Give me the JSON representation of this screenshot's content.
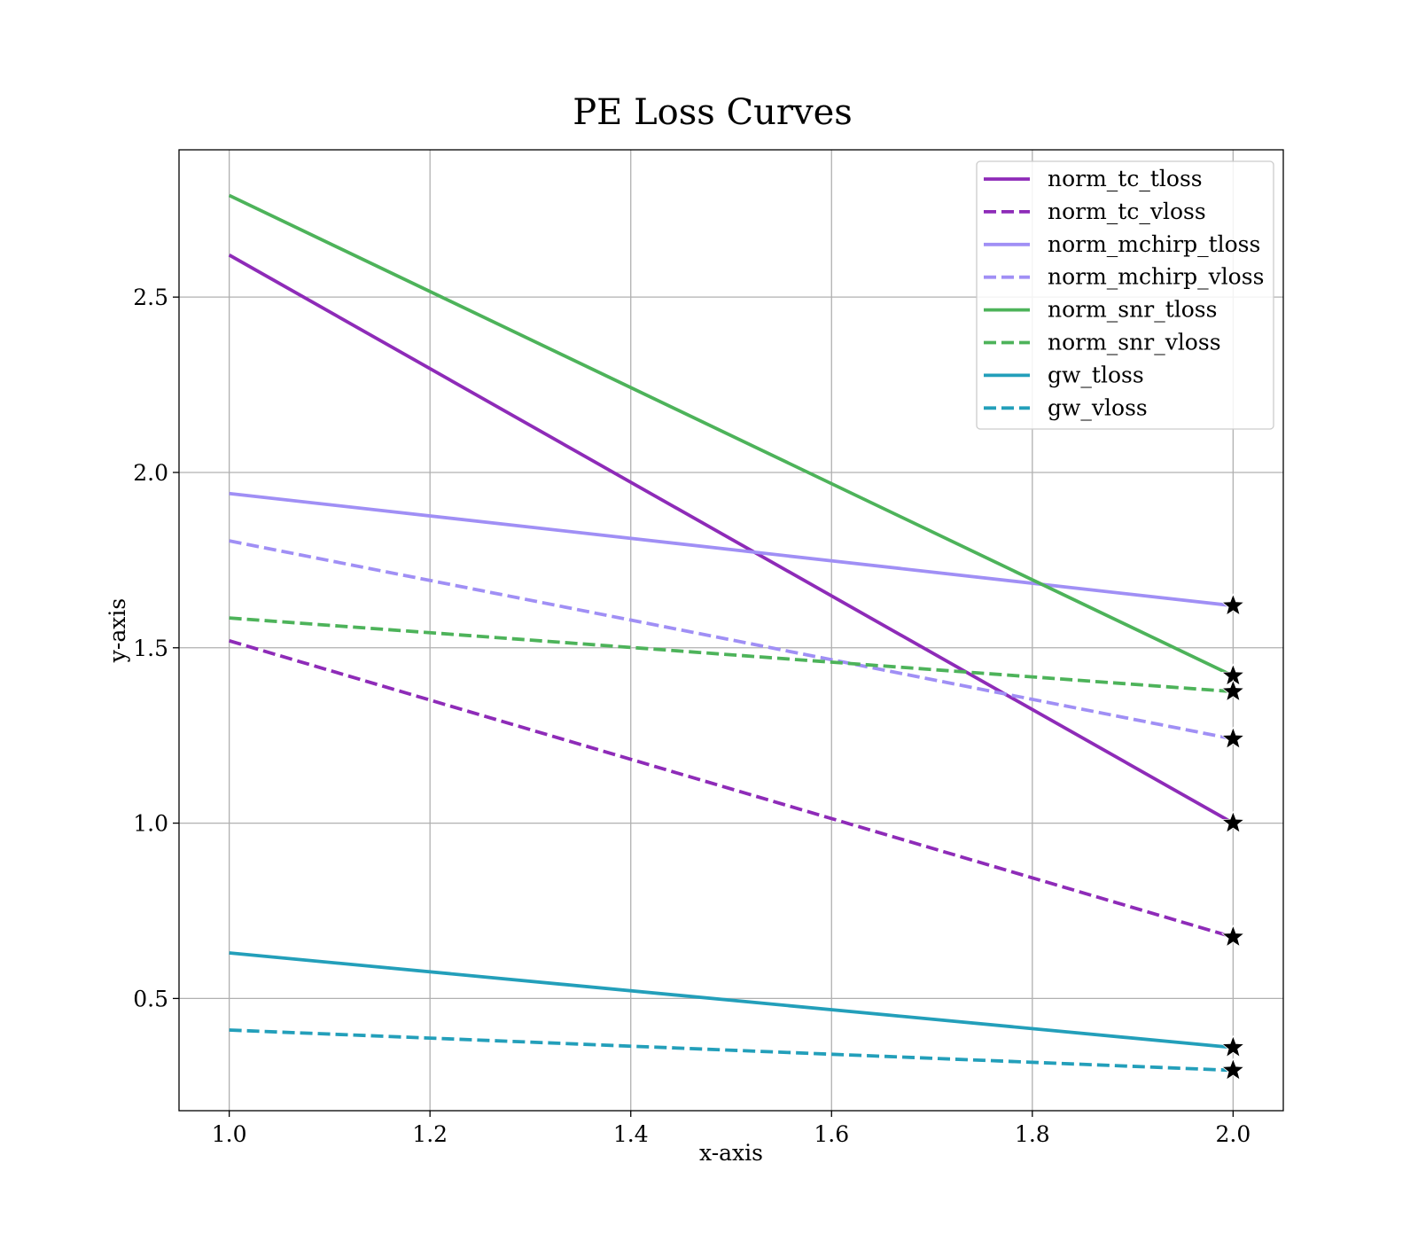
{
  "chart_data": {
    "type": "line",
    "title": "PE Loss Curves",
    "xlabel": "x-axis",
    "ylabel": "y-axis",
    "xlim": [
      0.95,
      2.05
    ],
    "ylim": [
      0.18,
      2.92
    ],
    "xticks": [
      "1.0",
      "1.2",
      "1.4",
      "1.6",
      "1.8",
      "2.0"
    ],
    "yticks": [
      "0.5",
      "1.0",
      "1.5",
      "2.0",
      "2.5"
    ],
    "grid": true,
    "legend_position": "top-right",
    "end_marker": "star",
    "end_marker_color": "#000000",
    "series": [
      {
        "name": "norm_tc_tloss",
        "x": [
          1.0,
          2.0
        ],
        "y": [
          2.62,
          1.0
        ],
        "color": "#8e2bb8",
        "style": "solid"
      },
      {
        "name": "norm_tc_vloss",
        "x": [
          1.0,
          2.0
        ],
        "y": [
          1.52,
          0.675
        ],
        "color": "#8e2bb8",
        "style": "dashed"
      },
      {
        "name": "norm_mchirp_tloss",
        "x": [
          1.0,
          2.0
        ],
        "y": [
          1.94,
          1.62
        ],
        "color": "#a08ff5",
        "style": "solid"
      },
      {
        "name": "norm_mchirp_vloss",
        "x": [
          1.0,
          2.0
        ],
        "y": [
          1.805,
          1.24
        ],
        "color": "#a08ff5",
        "style": "dashed"
      },
      {
        "name": "norm_snr_tloss",
        "x": [
          1.0,
          2.0
        ],
        "y": [
          2.79,
          1.42
        ],
        "color": "#4db35a",
        "style": "solid"
      },
      {
        "name": "norm_snr_vloss",
        "x": [
          1.0,
          2.0
        ],
        "y": [
          1.585,
          1.375
        ],
        "color": "#4db35a",
        "style": "dashed"
      },
      {
        "name": "gw_tloss",
        "x": [
          1.0,
          2.0
        ],
        "y": [
          0.63,
          0.36
        ],
        "color": "#239fba",
        "style": "solid"
      },
      {
        "name": "gw_vloss",
        "x": [
          1.0,
          2.0
        ],
        "y": [
          0.41,
          0.295
        ],
        "color": "#239fba",
        "style": "dashed"
      }
    ]
  }
}
